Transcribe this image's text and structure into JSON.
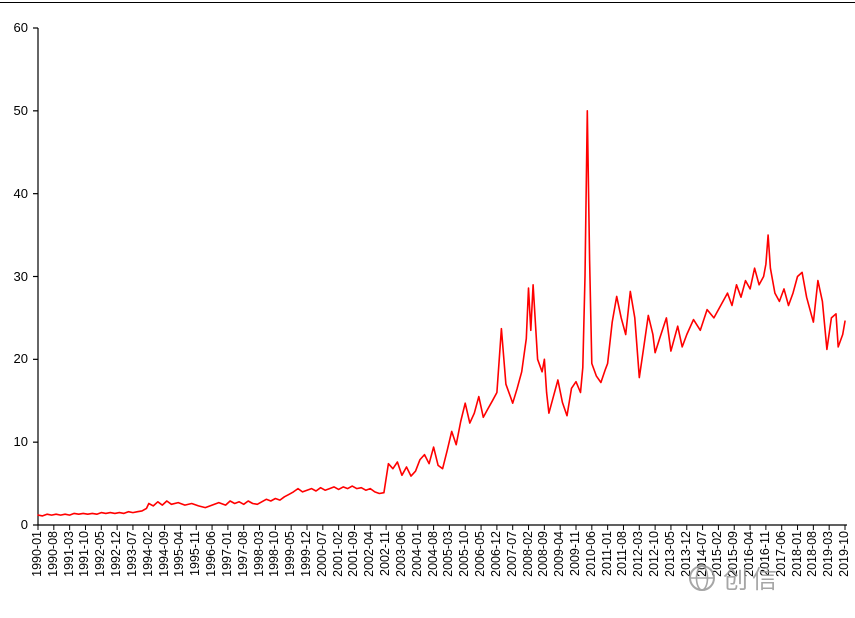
{
  "watermark": {
    "icon": "globe-icon",
    "text": "创信"
  },
  "chart_data": {
    "type": "line",
    "title": "",
    "legend": "none",
    "grid": false,
    "line_color": "#ff0000",
    "axis_color": "#000000",
    "ylim": [
      0,
      60
    ],
    "y_ticks": [
      "0",
      "10",
      "20",
      "30",
      "40",
      "50",
      "60"
    ],
    "x_tick_labels": [
      "1990-01",
      "1990-08",
      "1991-03",
      "1991-10",
      "1992-05",
      "1992-12",
      "1993-07",
      "1994-02",
      "1994-09",
      "1995-04",
      "1995-11",
      "1996-06",
      "1997-01",
      "1997-08",
      "1998-03",
      "1998-10",
      "1999-05",
      "1999-12",
      "2000-07",
      "2001-02",
      "2001-09",
      "2002-04",
      "2002-11",
      "2003-06",
      "2004-01",
      "2004-08",
      "2005-03",
      "2005-10",
      "2006-05",
      "2006-12",
      "2007-07",
      "2008-02",
      "2008-09",
      "2009-04",
      "2009-11",
      "2010-06",
      "2011-01",
      "2011-08",
      "2012-03",
      "2012-10",
      "2013-05",
      "2013-12",
      "2014-07",
      "2015-02",
      "2015-09",
      "2016-04",
      "2016-11",
      "2017-06",
      "2018-01",
      "2018-08",
      "2019-03",
      "2019-10"
    ],
    "x_range_months": [
      "1990-01",
      "2019-10"
    ],
    "series": [
      {
        "name": "series-1",
        "points": [
          [
            "1990-01",
            1.2
          ],
          [
            "1990-03",
            1.1
          ],
          [
            "1990-05",
            1.3
          ],
          [
            "1990-07",
            1.2
          ],
          [
            "1990-09",
            1.3
          ],
          [
            "1990-11",
            1.2
          ],
          [
            "1991-01",
            1.3
          ],
          [
            "1991-03",
            1.2
          ],
          [
            "1991-05",
            1.4
          ],
          [
            "1991-07",
            1.3
          ],
          [
            "1991-09",
            1.4
          ],
          [
            "1991-11",
            1.3
          ],
          [
            "1992-01",
            1.4
          ],
          [
            "1992-03",
            1.3
          ],
          [
            "1992-05",
            1.5
          ],
          [
            "1992-07",
            1.4
          ],
          [
            "1992-09",
            1.5
          ],
          [
            "1992-11",
            1.4
          ],
          [
            "1993-01",
            1.5
          ],
          [
            "1993-03",
            1.4
          ],
          [
            "1993-05",
            1.6
          ],
          [
            "1993-07",
            1.5
          ],
          [
            "1993-09",
            1.6
          ],
          [
            "1993-11",
            1.7
          ],
          [
            "1994-01",
            2.0
          ],
          [
            "1994-02",
            2.6
          ],
          [
            "1994-04",
            2.3
          ],
          [
            "1994-06",
            2.8
          ],
          [
            "1994-08",
            2.4
          ],
          [
            "1994-10",
            2.9
          ],
          [
            "1994-12",
            2.5
          ],
          [
            "1995-03",
            2.7
          ],
          [
            "1995-06",
            2.4
          ],
          [
            "1995-09",
            2.6
          ],
          [
            "1995-12",
            2.3
          ],
          [
            "1996-03",
            2.1
          ],
          [
            "1996-06",
            2.4
          ],
          [
            "1996-09",
            2.7
          ],
          [
            "1996-12",
            2.4
          ],
          [
            "1997-02",
            2.9
          ],
          [
            "1997-04",
            2.6
          ],
          [
            "1997-06",
            2.8
          ],
          [
            "1997-08",
            2.5
          ],
          [
            "1997-10",
            2.9
          ],
          [
            "1997-12",
            2.6
          ],
          [
            "1998-02",
            2.5
          ],
          [
            "1998-04",
            2.8
          ],
          [
            "1998-06",
            3.1
          ],
          [
            "1998-08",
            2.9
          ],
          [
            "1998-10",
            3.2
          ],
          [
            "1998-12",
            3.0
          ],
          [
            "1999-02",
            3.4
          ],
          [
            "1999-04",
            3.7
          ],
          [
            "1999-06",
            4.0
          ],
          [
            "1999-08",
            4.4
          ],
          [
            "1999-10",
            4.0
          ],
          [
            "1999-12",
            4.2
          ],
          [
            "2000-02",
            4.4
          ],
          [
            "2000-04",
            4.1
          ],
          [
            "2000-06",
            4.5
          ],
          [
            "2000-08",
            4.2
          ],
          [
            "2000-10",
            4.4
          ],
          [
            "2000-12",
            4.6
          ],
          [
            "2001-02",
            4.3
          ],
          [
            "2001-04",
            4.6
          ],
          [
            "2001-06",
            4.4
          ],
          [
            "2001-08",
            4.7
          ],
          [
            "2001-10",
            4.4
          ],
          [
            "2001-12",
            4.5
          ],
          [
            "2002-02",
            4.2
          ],
          [
            "2002-04",
            4.4
          ],
          [
            "2002-06",
            4.0
          ],
          [
            "2002-08",
            3.8
          ],
          [
            "2002-10",
            3.9
          ],
          [
            "2002-12",
            7.4
          ],
          [
            "2003-02",
            6.8
          ],
          [
            "2003-04",
            7.6
          ],
          [
            "2003-06",
            6.0
          ],
          [
            "2003-08",
            7.0
          ],
          [
            "2003-10",
            5.9
          ],
          [
            "2003-12",
            6.5
          ],
          [
            "2004-02",
            7.9
          ],
          [
            "2004-04",
            8.5
          ],
          [
            "2004-06",
            7.4
          ],
          [
            "2004-08",
            9.4
          ],
          [
            "2004-10",
            7.2
          ],
          [
            "2004-12",
            6.8
          ],
          [
            "2005-02",
            9.0
          ],
          [
            "2005-04",
            11.3
          ],
          [
            "2005-06",
            9.7
          ],
          [
            "2005-08",
            12.5
          ],
          [
            "2005-10",
            14.7
          ],
          [
            "2005-12",
            12.3
          ],
          [
            "2006-02",
            13.5
          ],
          [
            "2006-04",
            15.5
          ],
          [
            "2006-06",
            13.0
          ],
          [
            "2006-08",
            14.0
          ],
          [
            "2006-10",
            15.0
          ],
          [
            "2006-12",
            16.0
          ],
          [
            "2007-02",
            23.7
          ],
          [
            "2007-04",
            17.0
          ],
          [
            "2007-06",
            15.5
          ],
          [
            "2007-07",
            14.7
          ],
          [
            "2007-09",
            16.5
          ],
          [
            "2007-11",
            18.5
          ],
          [
            "2008-01",
            22.5
          ],
          [
            "2008-02",
            28.6
          ],
          [
            "2008-03",
            23.5
          ],
          [
            "2008-04",
            29.0
          ],
          [
            "2008-06",
            20.0
          ],
          [
            "2008-08",
            18.5
          ],
          [
            "2008-09",
            20.0
          ],
          [
            "2008-10",
            16.0
          ],
          [
            "2008-11",
            13.5
          ],
          [
            "2009-01",
            15.5
          ],
          [
            "2009-03",
            17.5
          ],
          [
            "2009-05",
            14.8
          ],
          [
            "2009-07",
            13.2
          ],
          [
            "2009-09",
            16.5
          ],
          [
            "2009-11",
            17.3
          ],
          [
            "2010-01",
            16.0
          ],
          [
            "2010-02",
            19.0
          ],
          [
            "2010-03",
            30.0
          ],
          [
            "2010-04",
            50.0
          ],
          [
            "2010-05",
            32.0
          ],
          [
            "2010-06",
            19.5
          ],
          [
            "2010-08",
            18.0
          ],
          [
            "2010-10",
            17.2
          ],
          [
            "2010-12",
            18.8
          ],
          [
            "2011-01",
            19.5
          ],
          [
            "2011-03",
            24.5
          ],
          [
            "2011-05",
            27.6
          ],
          [
            "2011-07",
            25.0
          ],
          [
            "2011-09",
            23.0
          ],
          [
            "2011-11",
            28.2
          ],
          [
            "2012-01",
            25.0
          ],
          [
            "2012-03",
            17.8
          ],
          [
            "2012-05",
            21.5
          ],
          [
            "2012-07",
            25.3
          ],
          [
            "2012-09",
            23.0
          ],
          [
            "2012-10",
            20.8
          ],
          [
            "2012-12",
            22.5
          ],
          [
            "2013-03",
            25.0
          ],
          [
            "2013-05",
            21.0
          ],
          [
            "2013-08",
            24.0
          ],
          [
            "2013-10",
            21.5
          ],
          [
            "2013-12",
            23.0
          ],
          [
            "2014-03",
            24.8
          ],
          [
            "2014-06",
            23.5
          ],
          [
            "2014-09",
            26.0
          ],
          [
            "2014-12",
            25.0
          ],
          [
            "2015-03",
            26.5
          ],
          [
            "2015-06",
            28.0
          ],
          [
            "2015-08",
            26.5
          ],
          [
            "2015-10",
            29.0
          ],
          [
            "2015-12",
            27.5
          ],
          [
            "2016-02",
            29.5
          ],
          [
            "2016-04",
            28.5
          ],
          [
            "2016-06",
            31.0
          ],
          [
            "2016-08",
            29.0
          ],
          [
            "2016-10",
            30.0
          ],
          [
            "2016-11",
            31.5
          ],
          [
            "2016-12",
            35.0
          ],
          [
            "2017-01",
            31.0
          ],
          [
            "2017-03",
            28.0
          ],
          [
            "2017-05",
            27.0
          ],
          [
            "2017-07",
            28.5
          ],
          [
            "2017-09",
            26.5
          ],
          [
            "2017-11",
            28.0
          ],
          [
            "2018-01",
            30.0
          ],
          [
            "2018-03",
            30.5
          ],
          [
            "2018-05",
            27.5
          ],
          [
            "2018-07",
            25.5
          ],
          [
            "2018-08",
            24.5
          ],
          [
            "2018-10",
            29.5
          ],
          [
            "2018-12",
            27.0
          ],
          [
            "2019-02",
            21.2
          ],
          [
            "2019-04",
            25.0
          ],
          [
            "2019-06",
            25.5
          ],
          [
            "2019-07",
            21.5
          ],
          [
            "2019-09",
            23.0
          ],
          [
            "2019-10",
            24.6
          ]
        ]
      }
    ]
  }
}
